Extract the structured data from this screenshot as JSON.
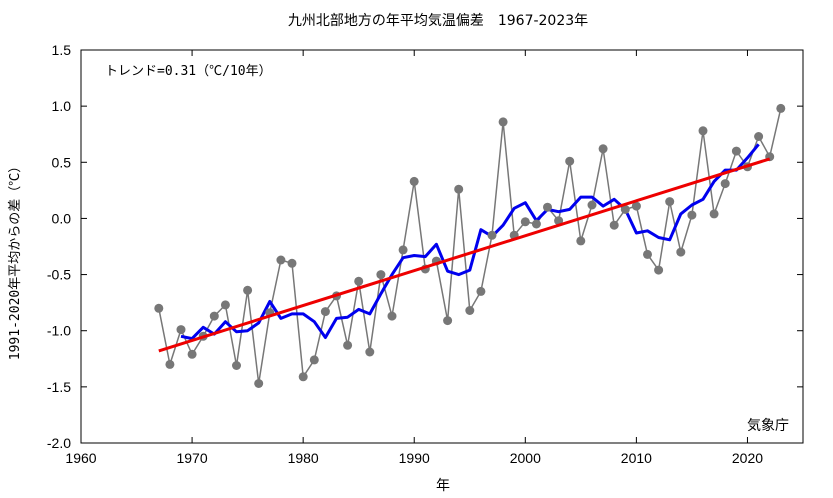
{
  "chart_data": {
    "type": "line",
    "title": "九州北部地方の年平均気温偏差　1967-2023年",
    "xlabel": "年",
    "ylabel": "1991-2020年平均からの差（℃）",
    "xlim": [
      1960,
      2025
    ],
    "ylim": [
      -2.0,
      1.5
    ],
    "x_ticks": [
      1960,
      1970,
      1980,
      1990,
      2000,
      2010,
      2020
    ],
    "y_ticks": [
      -2.0,
      -1.5,
      -1.0,
      -0.5,
      0.0,
      0.5,
      1.0,
      1.5
    ],
    "y_tick_labels": [
      "-2.0",
      "-1.5",
      "-1.0",
      "-0.5",
      "0.0",
      "0.5",
      "1.0",
      "1.5"
    ],
    "grid": false,
    "trend_label": "トレンド=0.31（℃/10年）",
    "source_label": "気象庁",
    "colors": {
      "annual": "#777777",
      "moving_average": "#0000ee",
      "trend": "#ee0000",
      "frame": "#000000"
    },
    "series": [
      {
        "key": "annual",
        "style": "line-markers",
        "x": [
          1967,
          1968,
          1969,
          1970,
          1971,
          1972,
          1973,
          1974,
          1975,
          1976,
          1977,
          1978,
          1979,
          1980,
          1981,
          1982,
          1983,
          1984,
          1985,
          1986,
          1987,
          1988,
          1989,
          1990,
          1991,
          1992,
          1993,
          1994,
          1995,
          1996,
          1997,
          1998,
          1999,
          2000,
          2001,
          2002,
          2003,
          2004,
          2005,
          2006,
          2007,
          2008,
          2009,
          2010,
          2011,
          2012,
          2013,
          2014,
          2015,
          2016,
          2017,
          2018,
          2019,
          2020,
          2021,
          2022,
          2023
        ],
        "y": [
          -0.8,
          -1.3,
          -0.99,
          -1.21,
          -1.05,
          -0.87,
          -0.77,
          -1.31,
          -0.64,
          -1.47,
          -0.84,
          -0.37,
          -0.4,
          -1.41,
          -1.26,
          -0.83,
          -0.69,
          -1.13,
          -0.56,
          -1.19,
          -0.5,
          -0.87,
          -0.28,
          0.33,
          -0.45,
          -0.38,
          -0.91,
          0.26,
          -0.82,
          -0.65,
          -0.15,
          0.86,
          -0.15,
          -0.03,
          -0.05,
          0.1,
          -0.02,
          0.51,
          -0.2,
          0.12,
          0.62,
          -0.06,
          0.08,
          0.11,
          -0.32,
          -0.46,
          0.15,
          -0.3,
          0.03,
          0.78,
          0.04,
          0.31,
          0.6,
          0.46,
          0.73,
          0.55,
          0.98
        ]
      },
      {
        "key": "moving_average",
        "style": "line",
        "x": [
          1969,
          1970,
          1971,
          1972,
          1973,
          1974,
          1975,
          1976,
          1977,
          1978,
          1979,
          1980,
          1981,
          1982,
          1983,
          1984,
          1985,
          1986,
          1987,
          1988,
          1989,
          1990,
          1991,
          1992,
          1993,
          1994,
          1995,
          1996,
          1997,
          1998,
          1999,
          2000,
          2001,
          2002,
          2003,
          2004,
          2005,
          2006,
          2007,
          2008,
          2009,
          2010,
          2011,
          2012,
          2013,
          2014,
          2015,
          2016,
          2017,
          2018,
          2019,
          2020,
          2021
        ],
        "y": [
          -1.05,
          -1.07,
          -0.97,
          -1.03,
          -0.92,
          -1.01,
          -1.0,
          -0.93,
          -0.74,
          -0.89,
          -0.85,
          -0.85,
          -0.92,
          -1.06,
          -0.89,
          -0.88,
          -0.81,
          -0.85,
          -0.67,
          -0.5,
          -0.35,
          -0.33,
          -0.34,
          -0.23,
          -0.47,
          -0.5,
          -0.46,
          -0.1,
          -0.16,
          -0.06,
          0.09,
          0.14,
          -0.02,
          0.08,
          0.06,
          0.08,
          0.19,
          0.19,
          0.11,
          0.17,
          0.08,
          -0.13,
          -0.11,
          -0.17,
          -0.19,
          0.04,
          0.12,
          0.17,
          0.33,
          0.43,
          0.43,
          0.54,
          0.66
        ]
      },
      {
        "key": "trend",
        "style": "line",
        "x": [
          1967,
          2022
        ],
        "y": [
          -1.18,
          0.53
        ]
      }
    ]
  }
}
